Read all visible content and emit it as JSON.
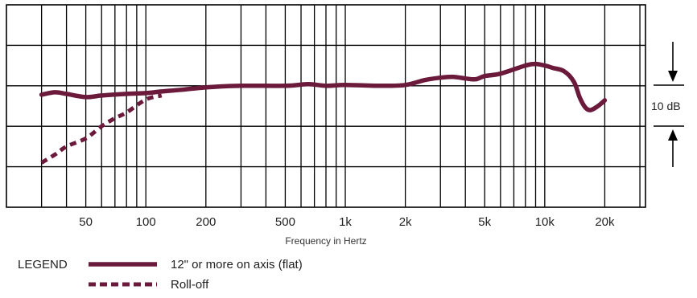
{
  "chart_data": {
    "type": "line",
    "title": "",
    "xlabel": "Frequency in Hertz",
    "ylabel": "",
    "x_scale": "log",
    "xlim": [
      20,
      32000
    ],
    "ylim": [
      -15,
      10
    ],
    "grid": true,
    "x_tick_labels": [
      {
        "value": 50,
        "label": "50"
      },
      {
        "value": 100,
        "label": "100"
      },
      {
        "value": 200,
        "label": "200"
      },
      {
        "value": 500,
        "label": "500"
      },
      {
        "value": 1000,
        "label": "1k"
      },
      {
        "value": 2000,
        "label": "2k"
      },
      {
        "value": 5000,
        "label": "5k"
      },
      {
        "value": 10000,
        "label": "10k"
      },
      {
        "value": 20000,
        "label": "20k"
      }
    ],
    "scale_marker": {
      "label": "10 dB",
      "value_db": 10
    },
    "series": [
      {
        "name": "12\" or more on axis (flat)",
        "style": "solid",
        "color": "#6b1a3c",
        "points": [
          [
            30,
            -1.1
          ],
          [
            35,
            -0.8
          ],
          [
            40,
            -1.0
          ],
          [
            50,
            -1.4
          ],
          [
            60,
            -1.2
          ],
          [
            80,
            -1.0
          ],
          [
            100,
            -0.9
          ],
          [
            120,
            -0.7
          ],
          [
            150,
            -0.5
          ],
          [
            200,
            -0.2
          ],
          [
            300,
            0.0
          ],
          [
            500,
            0.0
          ],
          [
            650,
            0.2
          ],
          [
            800,
            0.0
          ],
          [
            1000,
            0.1
          ],
          [
            1500,
            0.0
          ],
          [
            2000,
            0.1
          ],
          [
            2500,
            0.7
          ],
          [
            3000,
            1.0
          ],
          [
            3500,
            1.1
          ],
          [
            4000,
            0.9
          ],
          [
            4500,
            0.8
          ],
          [
            5000,
            1.2
          ],
          [
            6000,
            1.5
          ],
          [
            8000,
            2.5
          ],
          [
            9000,
            2.7
          ],
          [
            10000,
            2.5
          ],
          [
            11000,
            2.2
          ],
          [
            12500,
            1.8
          ],
          [
            14000,
            0.5
          ],
          [
            15000,
            -1.5
          ],
          [
            16000,
            -2.7
          ],
          [
            17000,
            -3.0
          ],
          [
            18500,
            -2.5
          ],
          [
            20000,
            -1.8
          ]
        ]
      },
      {
        "name": "Roll-off",
        "style": "dashed",
        "color": "#6b1a3c",
        "points": [
          [
            30,
            -9.5
          ],
          [
            35,
            -8.5
          ],
          [
            40,
            -7.5
          ],
          [
            50,
            -6.5
          ],
          [
            60,
            -5.0
          ],
          [
            70,
            -4.0
          ],
          [
            80,
            -3.3
          ],
          [
            100,
            -1.7
          ],
          [
            120,
            -1.2
          ]
        ]
      }
    ]
  },
  "legend": {
    "title": "LEGEND",
    "items": [
      {
        "label": "12\" or more on axis (flat)"
      },
      {
        "label": "Roll-off"
      }
    ]
  }
}
